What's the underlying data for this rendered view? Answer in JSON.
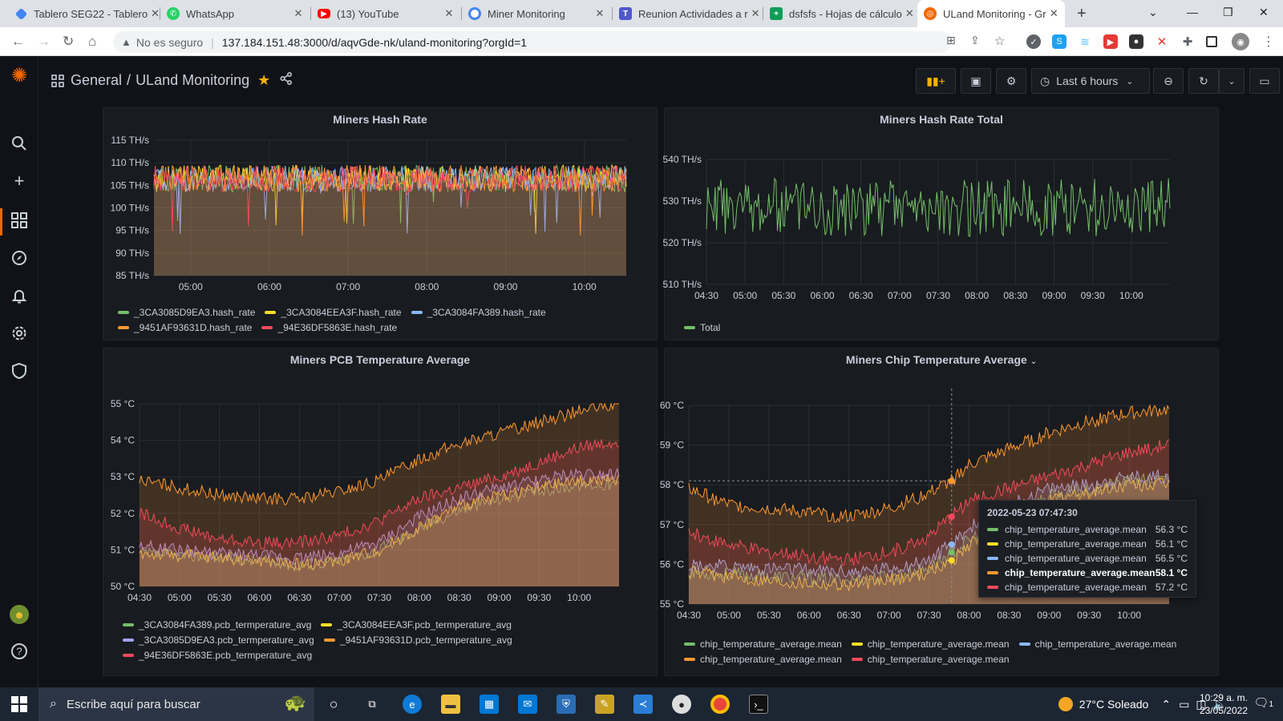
{
  "browser": {
    "tabs": [
      {
        "title": "Tablero SEG22 - Tablero",
        "icon": "diamond-icon",
        "color": "#4285f4"
      },
      {
        "title": "WhatsApp",
        "icon": "whatsapp-icon",
        "color": "#25d366"
      },
      {
        "title": "(13) YouTube",
        "icon": "youtube-icon",
        "color": "#ff0000"
      },
      {
        "title": "Miner Monitoring",
        "icon": "chrome-icon",
        "color": "#4285f4"
      },
      {
        "title": "Reunion Actividades a r",
        "icon": "teams-icon",
        "color": "#5059c9"
      },
      {
        "title": "dsfsfs - Hojas de cálculo",
        "icon": "sheets-icon",
        "color": "#0f9d58"
      },
      {
        "title": "ULand Monitoring - Gr",
        "icon": "grafana-icon",
        "color": "#f46800"
      }
    ],
    "security": "No es seguro",
    "url": "137.184.151.48:3000/d/aqvGde-nk/uland-monitoring?orgId=1"
  },
  "dashboard": {
    "folder": "General",
    "separator": "/",
    "title": "ULand Monitoring",
    "time_range": "Last 6 hours"
  },
  "panels": {
    "hashrate": {
      "title": "Miners Hash Rate",
      "chart_data": {
        "type": "area",
        "y_ticks": [
          "115 TH/s",
          "110 TH/s",
          "105 TH/s",
          "100 TH/s",
          "95 TH/s",
          "90 TH/s",
          "85 TH/s"
        ],
        "x_ticks": [
          "05:00",
          "06:00",
          "07:00",
          "08:00",
          "09:00",
          "10:00"
        ],
        "ylim": [
          85,
          115
        ],
        "x_range": [
          "04:32",
          "10:32"
        ],
        "series": [
          {
            "name": "_3CA3085D9EA3.hash_rate",
            "color": "#73bf69",
            "values": [
              106.5
            ]
          },
          {
            "name": "_3CA3084EEA3F.hash_rate",
            "color": "#fade2a",
            "values": [
              106.5
            ]
          },
          {
            "name": "_3CA3084FA389.hash_rate",
            "color": "#8ab8ff",
            "values": [
              106.5
            ]
          },
          {
            "name": "_9451AF93631D.hash_rate",
            "color": "#ff9830",
            "values": [
              106.5
            ]
          },
          {
            "name": "_94E36DF5863E.hash_rate",
            "color": "#f2495c",
            "values": [
              106.5
            ]
          }
        ]
      }
    },
    "hashrate_total": {
      "title": "Miners Hash Rate Total",
      "chart_data": {
        "type": "line",
        "y_ticks": [
          "540 TH/s",
          "530 TH/s",
          "520 TH/s",
          "510 TH/s"
        ],
        "x_ticks": [
          "04:30",
          "05:00",
          "05:30",
          "06:00",
          "06:30",
          "07:00",
          "07:30",
          "08:00",
          "08:30",
          "09:00",
          "09:30",
          "10:00"
        ],
        "ylim": [
          510,
          540
        ],
        "x_range": [
          "04:30",
          "10:30"
        ],
        "series": [
          {
            "name": "Total",
            "color": "#73bf69",
            "values": [
              528.5
            ]
          }
        ]
      }
    },
    "pcb_temp": {
      "title": "Miners PCB Temperature Average",
      "chart_data": {
        "type": "area",
        "y_ticks": [
          "55 °C",
          "54 °C",
          "53 °C",
          "52 °C",
          "51 °C",
          "50 °C"
        ],
        "x_ticks": [
          "04:30",
          "05:00",
          "05:30",
          "06:00",
          "06:30",
          "07:00",
          "07:30",
          "08:00",
          "08:30",
          "09:00",
          "09:30",
          "10:00"
        ],
        "ylim": [
          50,
          55
        ],
        "x_range": [
          "04:30",
          "10:30"
        ],
        "series": [
          {
            "name": "_3CA3084FA389.pcb_termperature_avg",
            "color": "#73bf69",
            "x": [
              "04:30",
              "05:30",
              "06:30",
              "07:00",
              "07:30",
              "08:00",
              "08:30",
              "09:00",
              "09:30",
              "10:00",
              "10:30"
            ],
            "values": [
              50.9,
              50.8,
              50.6,
              50.7,
              51.0,
              51.6,
              52.1,
              52.4,
              52.6,
              52.8,
              52.8
            ]
          },
          {
            "name": "_3CA3084EEA3F.pcb_termperature_avg",
            "color": "#fade2a",
            "x": [
              "04:30",
              "05:30",
              "06:30",
              "07:00",
              "07:30",
              "08:00",
              "08:30",
              "09:00",
              "09:30",
              "10:00",
              "10:30"
            ],
            "values": [
              50.9,
              50.8,
              50.6,
              50.7,
              51.0,
              51.6,
              52.2,
              52.5,
              52.7,
              52.9,
              52.9
            ]
          },
          {
            "name": "_3CA3085D9EA3.pcb_termperature_avg",
            "color": "#a0a0f0",
            "x": [
              "04:30",
              "05:30",
              "06:30",
              "07:00",
              "07:30",
              "08:00",
              "08:30",
              "09:00",
              "09:30",
              "10:00",
              "10:30"
            ],
            "values": [
              51.1,
              50.9,
              50.8,
              50.9,
              51.2,
              51.9,
              52.4,
              52.7,
              52.9,
              53.1,
              53.1
            ]
          },
          {
            "name": "_9451AF93631D.pcb_termperature_avg",
            "color": "#ff9830",
            "x": [
              "04:30",
              "05:00",
              "05:30",
              "06:00",
              "06:30",
              "07:00",
              "07:30",
              "08:00",
              "08:30",
              "09:00",
              "09:30",
              "10:00",
              "10:30"
            ],
            "values": [
              52.9,
              52.7,
              52.5,
              52.4,
              52.4,
              52.6,
              52.9,
              53.5,
              53.9,
              54.2,
              54.5,
              54.8,
              55.0
            ]
          },
          {
            "name": "_94E36DF5863E.pcb_termperature_avg",
            "color": "#f2495c",
            "x": [
              "04:30",
              "05:00",
              "05:30",
              "06:00",
              "06:30",
              "07:00",
              "07:30",
              "08:00",
              "08:30",
              "09:00",
              "09:30",
              "10:00",
              "10:30"
            ],
            "values": [
              52.0,
              51.6,
              51.3,
              51.2,
              51.2,
              51.4,
              51.8,
              52.4,
              52.7,
              53.0,
              53.4,
              53.8,
              54.0
            ]
          }
        ]
      }
    },
    "chip_temp": {
      "title": "Miners Chip Temperature Average",
      "chart_data": {
        "type": "area",
        "y_ticks": [
          "60 °C",
          "59 °C",
          "58 °C",
          "57 °C",
          "56 °C",
          "55 °C"
        ],
        "x_ticks": [
          "04:30",
          "05:00",
          "05:30",
          "06:00",
          "06:30",
          "07:00",
          "07:30",
          "08:00",
          "08:30",
          "09:00",
          "09:30",
          "10:00"
        ],
        "ylim": [
          55,
          60
        ],
        "x_range": [
          "04:30",
          "10:30"
        ],
        "series": [
          {
            "name": "chip_temperature_average.mean",
            "color": "#73bf69",
            "x": [
              "04:30",
              "05:30",
              "06:30",
              "07:00",
              "07:30",
              "07:47",
              "08:00",
              "08:30",
              "09:00",
              "09:30",
              "10:00",
              "10:30"
            ],
            "values": [
              55.8,
              55.7,
              55.6,
              55.7,
              55.9,
              56.3,
              56.6,
              57.3,
              57.7,
              57.9,
              58.1,
              58.1
            ]
          },
          {
            "name": "chip_temperature_average.mean",
            "color": "#fade2a",
            "x": [
              "04:30",
              "05:30",
              "06:30",
              "07:00",
              "07:30",
              "07:47",
              "08:00",
              "08:30",
              "09:00",
              "09:30",
              "10:00",
              "10:30"
            ],
            "values": [
              55.8,
              55.6,
              55.5,
              55.6,
              55.8,
              56.1,
              56.5,
              57.2,
              57.6,
              57.8,
              58.0,
              58.0
            ]
          },
          {
            "name": "chip_temperature_average.mean",
            "color": "#8ab8ff",
            "x": [
              "04:30",
              "05:30",
              "06:30",
              "07:00",
              "07:30",
              "07:47",
              "08:00",
              "08:30",
              "09:00",
              "09:30",
              "10:00",
              "10:30"
            ],
            "values": [
              56.0,
              55.9,
              55.8,
              55.9,
              56.1,
              56.5,
              56.9,
              57.5,
              57.9,
              58.0,
              58.2,
              58.2
            ]
          },
          {
            "name": "chip_temperature_average.mean",
            "color": "#ff9830",
            "x": [
              "04:30",
              "05:00",
              "05:30",
              "06:00",
              "06:30",
              "07:00",
              "07:30",
              "07:47",
              "08:00",
              "08:30",
              "09:00",
              "09:30",
              "10:00",
              "10:30"
            ],
            "values": [
              57.9,
              57.5,
              57.4,
              57.3,
              57.2,
              57.4,
              57.8,
              58.1,
              58.5,
              58.9,
              59.3,
              59.6,
              59.8,
              59.9
            ]
          },
          {
            "name": "chip_temperature_average.mean",
            "color": "#f2495c",
            "x": [
              "04:30",
              "05:00",
              "05:30",
              "06:00",
              "06:30",
              "07:00",
              "07:30",
              "07:47",
              "08:00",
              "08:30",
              "09:00",
              "09:30",
              "10:00",
              "10:30"
            ],
            "values": [
              56.8,
              56.5,
              56.3,
              56.2,
              56.1,
              56.3,
              56.7,
              57.2,
              57.6,
              57.9,
              58.2,
              58.5,
              58.8,
              59.0
            ]
          }
        ]
      },
      "tooltip": {
        "time": "2022-05-23 07:47:30",
        "rows": [
          {
            "name": "chip_temperature_average.mean",
            "value": "56.3 °C",
            "color": "#73bf69"
          },
          {
            "name": "chip_temperature_average.mean",
            "value": "56.1 °C",
            "color": "#fade2a"
          },
          {
            "name": "chip_temperature_average.mean",
            "value": "56.5 °C",
            "color": "#8ab8ff"
          },
          {
            "name": "chip_temperature_average.mean",
            "value": "58.1 °C",
            "color": "#ff9830",
            "bold": true
          },
          {
            "name": "chip_temperature_average.mean",
            "value": "57.2 °C",
            "color": "#f2495c"
          }
        ]
      }
    }
  },
  "taskbar": {
    "search_placeholder": "Escribe aquí para buscar",
    "weather": "27°C  Soleado",
    "time": "10:29 a. m.",
    "date": "23/05/2022",
    "notifications": "1"
  }
}
